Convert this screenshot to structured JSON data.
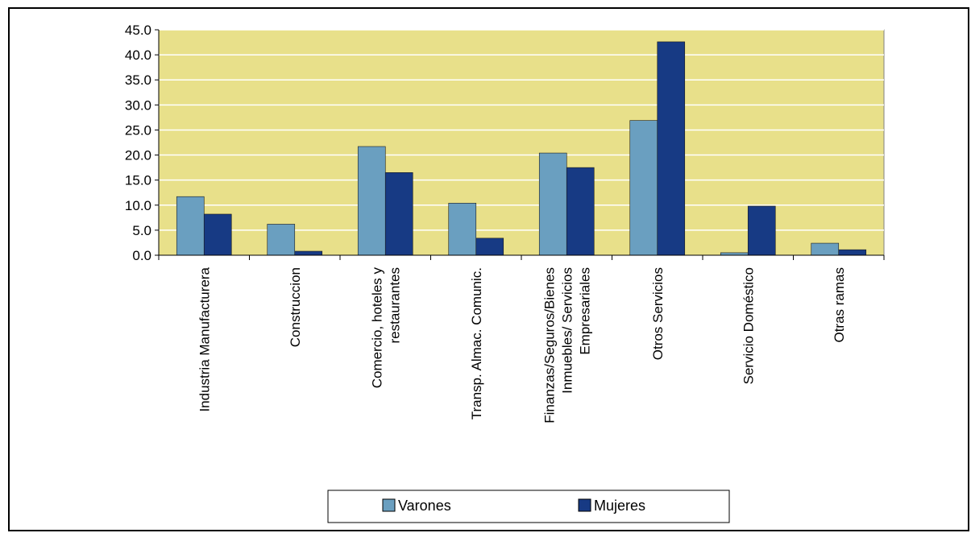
{
  "chart_data": {
    "type": "bar",
    "categories": [
      [
        "Industria Manufacturera"
      ],
      [
        "Construccion"
      ],
      [
        "Comercio, hoteles y",
        "restaurantes"
      ],
      [
        "Transp. Almac. Comunic."
      ],
      [
        "Finanzas/Seguros/Bienes",
        "Inmuebles/ Servicios",
        "Empresariales"
      ],
      [
        "Otros Servicios"
      ],
      [
        "Servicio Doméstico"
      ],
      [
        "Otras ramas"
      ]
    ],
    "series": [
      {
        "name": "Varones",
        "color": "#6a9fc0",
        "values": [
          11.7,
          6.2,
          21.7,
          10.4,
          20.4,
          26.9,
          0.5,
          2.4
        ]
      },
      {
        "name": "Mujeres",
        "color": "#173a84",
        "values": [
          8.2,
          0.8,
          16.5,
          3.4,
          17.5,
          42.6,
          9.8,
          1.1
        ]
      }
    ],
    "ylim": [
      0,
      45
    ],
    "yticks": [
      "0.0",
      "5.0",
      "10.0",
      "15.0",
      "20.0",
      "25.0",
      "30.0",
      "35.0",
      "40.0",
      "45.0"
    ],
    "grid": true,
    "plot_background": "#e8e08a",
    "legend_position": "bottom"
  }
}
